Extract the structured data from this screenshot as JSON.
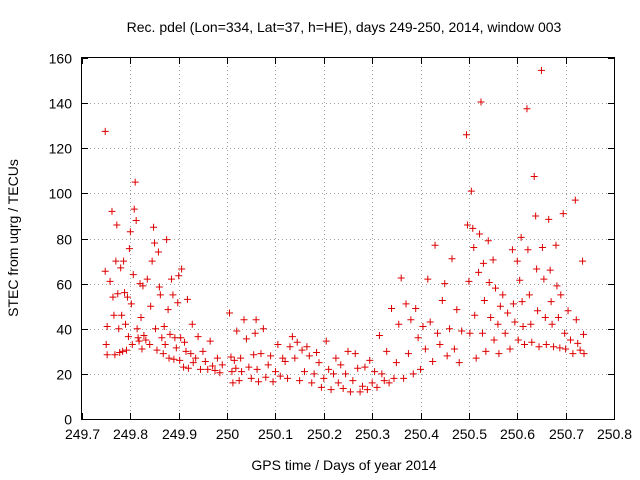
{
  "chart_data": {
    "type": "scatter",
    "title": "Rec. pdel (Lon=334, Lat=37, h=HE), days 249-250, 2014, window 003",
    "xlabel": "GPS time / Days of year 2014",
    "ylabel": "STEC from uqrg / TECUs",
    "xlim": [
      249.7,
      250.8
    ],
    "ylim": [
      0,
      160
    ],
    "xticks": [
      249.7,
      249.8,
      249.9,
      250,
      250.1,
      250.2,
      250.3,
      250.4,
      250.5,
      250.6,
      250.7,
      250.8
    ],
    "xtick_labels": [
      "249.7",
      "249.8",
      "249.9",
      "250",
      "250.1",
      "250.2",
      "250.3",
      "250.4",
      "250.5",
      "250.6",
      "250.7",
      "250.8"
    ],
    "yticks": [
      0,
      20,
      40,
      60,
      80,
      100,
      120,
      140,
      160
    ],
    "ytick_labels": [
      "0",
      "20",
      "40",
      "60",
      "80",
      "100",
      "120",
      "140",
      "160"
    ],
    "grid": true,
    "marker": "+",
    "color": "#dd0000",
    "series": [
      {
        "points": [
          [
            249.748,
            127.5
          ],
          [
            249.748,
            65.5
          ],
          [
            249.752,
            41.0
          ],
          [
            249.75,
            33.0
          ],
          [
            249.752,
            28.5
          ],
          [
            249.758,
            61.0
          ],
          [
            249.762,
            92.0
          ],
          [
            249.764,
            54.0
          ],
          [
            249.766,
            46.0
          ],
          [
            249.768,
            28.5
          ],
          [
            249.77,
            70.0
          ],
          [
            249.772,
            86.0
          ],
          [
            249.774,
            55.5
          ],
          [
            249.776,
            40.0
          ],
          [
            249.778,
            29.5
          ],
          [
            249.78,
            67.0
          ],
          [
            249.782,
            46.0
          ],
          [
            249.784,
            30.0
          ],
          [
            249.786,
            70.0
          ],
          [
            249.788,
            56.0
          ],
          [
            249.79,
            42.0
          ],
          [
            249.792,
            30.5
          ],
          [
            249.794,
            54.0
          ],
          [
            249.796,
            36.5
          ],
          [
            249.798,
            75.5
          ],
          [
            249.8,
            83.0
          ],
          [
            249.802,
            51.0
          ],
          [
            249.804,
            33.0
          ],
          [
            249.806,
            64.0
          ],
          [
            249.808,
            93.0
          ],
          [
            249.81,
            105.0
          ],
          [
            249.812,
            88.0
          ],
          [
            249.814,
            40.0
          ],
          [
            249.816,
            36.0
          ],
          [
            249.818,
            34.5
          ],
          [
            249.82,
            60.0
          ],
          [
            249.822,
            45.0
          ],
          [
            249.824,
            31.0
          ],
          [
            249.826,
            59.0
          ],
          [
            249.828,
            37.0
          ],
          [
            249.832,
            35.0
          ],
          [
            249.835,
            62.0
          ],
          [
            249.84,
            33.0
          ],
          [
            249.842,
            50.0
          ],
          [
            249.845,
            70.0
          ],
          [
            249.848,
            85.0
          ],
          [
            249.85,
            78.0
          ],
          [
            249.852,
            40.0
          ],
          [
            249.855,
            30.5
          ],
          [
            249.858,
            74.0
          ],
          [
            249.86,
            58.5
          ],
          [
            249.862,
            55.0
          ],
          [
            249.865,
            36.0
          ],
          [
            249.868,
            29.0
          ],
          [
            249.87,
            41.0
          ],
          [
            249.872,
            33.0
          ],
          [
            249.875,
            79.5
          ],
          [
            249.878,
            48.5
          ],
          [
            249.88,
            27.0
          ],
          [
            249.882,
            37.5
          ],
          [
            249.885,
            62.0
          ],
          [
            249.888,
            55.0
          ],
          [
            249.89,
            26.5
          ],
          [
            249.892,
            36.0
          ],
          [
            249.895,
            31.5
          ],
          [
            249.898,
            51.5
          ],
          [
            249.9,
            63.5
          ],
          [
            249.902,
            26.0
          ],
          [
            249.904,
            36.0
          ],
          [
            249.906,
            66.5
          ],
          [
            249.91,
            23.0
          ],
          [
            249.912,
            34.0
          ],
          [
            249.915,
            30.0
          ],
          [
            249.918,
            53.0
          ],
          [
            249.92,
            22.5
          ],
          [
            249.925,
            29.0
          ],
          [
            249.928,
            42.0
          ],
          [
            249.93,
            25.0
          ],
          [
            249.935,
            27.0
          ],
          [
            249.94,
            36.5
          ],
          [
            249.945,
            22.0
          ],
          [
            249.95,
            30.0
          ],
          [
            249.955,
            25.5
          ],
          [
            249.96,
            22.0
          ],
          [
            249.965,
            34.5
          ],
          [
            249.97,
            23.5
          ],
          [
            249.975,
            21.5
          ],
          [
            249.98,
            27.0
          ],
          [
            249.985,
            20.5
          ],
          [
            249.99,
            24.0
          ],
          [
            250.005,
            47.0
          ],
          [
            250.008,
            27.5
          ],
          [
            250.01,
            21.0
          ],
          [
            250.012,
            16.0
          ],
          [
            250.015,
            26.0
          ],
          [
            250.018,
            22.5
          ],
          [
            250.02,
            39.0
          ],
          [
            250.025,
            17.0
          ],
          [
            250.028,
            27.0
          ],
          [
            250.03,
            21.0
          ],
          [
            250.035,
            44.0
          ],
          [
            250.04,
            35.5
          ],
          [
            250.045,
            23.0
          ],
          [
            250.05,
            18.0
          ],
          [
            250.055,
            28.5
          ],
          [
            250.058,
            38.0
          ],
          [
            250.06,
            44.0
          ],
          [
            250.062,
            22.0
          ],
          [
            250.065,
            16.5
          ],
          [
            250.07,
            29.0
          ],
          [
            250.075,
            40.0
          ],
          [
            250.08,
            18.5
          ],
          [
            250.085,
            24.0
          ],
          [
            250.09,
            28.0
          ],
          [
            250.095,
            16.5
          ],
          [
            250.1,
            21.0
          ],
          [
            250.105,
            33.0
          ],
          [
            250.11,
            19.0
          ],
          [
            250.115,
            27.0
          ],
          [
            250.12,
            25.5
          ],
          [
            250.125,
            18.0
          ],
          [
            250.13,
            32.0
          ],
          [
            250.135,
            36.5
          ],
          [
            250.14,
            27.0
          ],
          [
            250.145,
            34.0
          ],
          [
            250.15,
            17.0
          ],
          [
            250.155,
            30.5
          ],
          [
            250.16,
            21.0
          ],
          [
            250.165,
            32.0
          ],
          [
            250.17,
            28.0
          ],
          [
            250.175,
            16.0
          ],
          [
            250.18,
            20.0
          ],
          [
            250.185,
            29.5
          ],
          [
            250.19,
            25.0
          ],
          [
            250.195,
            14.0
          ],
          [
            250.2,
            18.0
          ],
          [
            250.205,
            34.5
          ],
          [
            250.21,
            22.0
          ],
          [
            250.215,
            13.0
          ],
          [
            250.22,
            20.0
          ],
          [
            250.225,
            27.0
          ],
          [
            250.23,
            16.0
          ],
          [
            250.235,
            24.0
          ],
          [
            250.24,
            13.5
          ],
          [
            250.245,
            20.0
          ],
          [
            250.25,
            30.0
          ],
          [
            250.255,
            12.0
          ],
          [
            250.26,
            17.0
          ],
          [
            250.265,
            29.0
          ],
          [
            250.27,
            22.5
          ],
          [
            250.275,
            12.0
          ],
          [
            250.28,
            14.5
          ],
          [
            250.285,
            23.0
          ],
          [
            250.29,
            13.0
          ],
          [
            250.295,
            26.0
          ],
          [
            250.3,
            16.0
          ],
          [
            250.305,
            21.0
          ],
          [
            250.31,
            14.0
          ],
          [
            250.315,
            37.0
          ],
          [
            250.32,
            20.0
          ],
          [
            250.325,
            17.0
          ],
          [
            250.33,
            30.0
          ],
          [
            250.335,
            16.0
          ],
          [
            250.34,
            49.0
          ],
          [
            250.345,
            18.0
          ],
          [
            250.35,
            25.0
          ],
          [
            250.355,
            42.0
          ],
          [
            250.36,
            62.5
          ],
          [
            250.365,
            18.0
          ],
          [
            250.37,
            51.0
          ],
          [
            250.375,
            29.0
          ],
          [
            250.38,
            44.0
          ],
          [
            250.385,
            20.0
          ],
          [
            250.39,
            49.0
          ],
          [
            250.395,
            36.0
          ],
          [
            250.4,
            22.0
          ],
          [
            250.405,
            41.0
          ],
          [
            250.41,
            31.0
          ],
          [
            250.415,
            62.0
          ],
          [
            250.42,
            43.0
          ],
          [
            250.425,
            25.5
          ],
          [
            250.43,
            77.0
          ],
          [
            250.435,
            38.0
          ],
          [
            250.44,
            33.0
          ],
          [
            250.445,
            52.5
          ],
          [
            250.45,
            60.0
          ],
          [
            250.455,
            28.0
          ],
          [
            250.46,
            40.0
          ],
          [
            250.465,
            71.0
          ],
          [
            250.47,
            31.0
          ],
          [
            250.475,
            48.5
          ],
          [
            250.48,
            25.0
          ],
          [
            250.485,
            39.0
          ],
          [
            250.495,
            126.0
          ],
          [
            250.497,
            86.0
          ],
          [
            250.5,
            61.0
          ],
          [
            250.502,
            38.0
          ],
          [
            250.505,
            101.0
          ],
          [
            250.508,
            84.5
          ],
          [
            250.51,
            76.0
          ],
          [
            250.512,
            46.0
          ],
          [
            250.515,
            27.0
          ],
          [
            250.52,
            65.0
          ],
          [
            250.522,
            82.0
          ],
          [
            250.525,
            140.5
          ],
          [
            250.528,
            38.0
          ],
          [
            250.53,
            69.0
          ],
          [
            250.532,
            52.5
          ],
          [
            250.535,
            30.0
          ],
          [
            250.54,
            79.0
          ],
          [
            250.542,
            60.5
          ],
          [
            250.545,
            45.0
          ],
          [
            250.55,
            70.5
          ],
          [
            250.552,
            35.0
          ],
          [
            250.555,
            58.0
          ],
          [
            250.56,
            42.0
          ],
          [
            250.562,
            29.0
          ],
          [
            250.565,
            50.0
          ],
          [
            250.57,
            55.0
          ],
          [
            250.575,
            38.0
          ],
          [
            250.58,
            47.0
          ],
          [
            250.585,
            31.0
          ],
          [
            250.59,
            75.0
          ],
          [
            250.592,
            51.0
          ],
          [
            250.595,
            43.0
          ],
          [
            250.6,
            70.0
          ],
          [
            250.602,
            35.0
          ],
          [
            250.605,
            61.5
          ],
          [
            250.608,
            80.5
          ],
          [
            250.61,
            52.0
          ],
          [
            250.612,
            41.0
          ],
          [
            250.615,
            33.0
          ],
          [
            250.62,
            137.5
          ],
          [
            250.622,
            75.0
          ],
          [
            250.625,
            55.0
          ],
          [
            250.628,
            42.0
          ],
          [
            250.63,
            34.0
          ],
          [
            250.635,
            107.5
          ],
          [
            250.638,
            90.0
          ],
          [
            250.64,
            66.5
          ],
          [
            250.642,
            48.0
          ],
          [
            250.645,
            32.0
          ],
          [
            250.65,
            154.5
          ],
          [
            250.652,
            76.0
          ],
          [
            250.655,
            62.0
          ],
          [
            250.658,
            45.0
          ],
          [
            250.66,
            33.0
          ],
          [
            250.665,
            88.5
          ],
          [
            250.668,
            66.0
          ],
          [
            250.67,
            52.0
          ],
          [
            250.672,
            42.0
          ],
          [
            250.675,
            32.0
          ],
          [
            250.68,
            77.0
          ],
          [
            250.682,
            59.0
          ],
          [
            250.685,
            45.0
          ],
          [
            250.688,
            31.5
          ],
          [
            250.69,
            55.0
          ],
          [
            250.695,
            91.0
          ],
          [
            250.698,
            38.0
          ],
          [
            250.7,
            31.0
          ],
          [
            250.705,
            48.0
          ],
          [
            250.71,
            35.0
          ],
          [
            250.715,
            29.0
          ],
          [
            250.72,
            97.0
          ],
          [
            250.722,
            44.0
          ],
          [
            250.725,
            33.5
          ],
          [
            250.73,
            30.5
          ],
          [
            250.735,
            70.0
          ],
          [
            250.737,
            37.5
          ],
          [
            250.738,
            29.0
          ]
        ]
      }
    ]
  }
}
